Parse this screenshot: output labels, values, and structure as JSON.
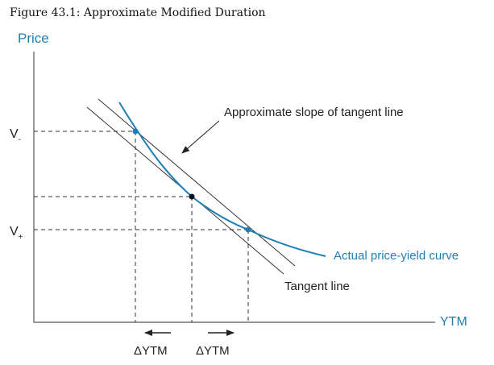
{
  "figure": {
    "title": "Figure 43.1: Approximate Modified Duration"
  },
  "axes": {
    "y_label": "Price",
    "x_label": "YTM"
  },
  "price_labels": {
    "v_minus": {
      "main": "V",
      "sub": "-"
    },
    "v_plus": {
      "main": "V",
      "sub": "+"
    }
  },
  "annotations": {
    "approx_slope": "Approximate slope of tangent line",
    "actual_curve": "Actual price-yield curve",
    "tangent_line": "Tangent line"
  },
  "delta_labels": {
    "left": "ΔYTM",
    "right": "ΔYTM"
  },
  "colors": {
    "curve": "#1f7fb5",
    "axis_label": "#1f7fb5",
    "lines": "#333333",
    "dashes": "#333333"
  }
}
